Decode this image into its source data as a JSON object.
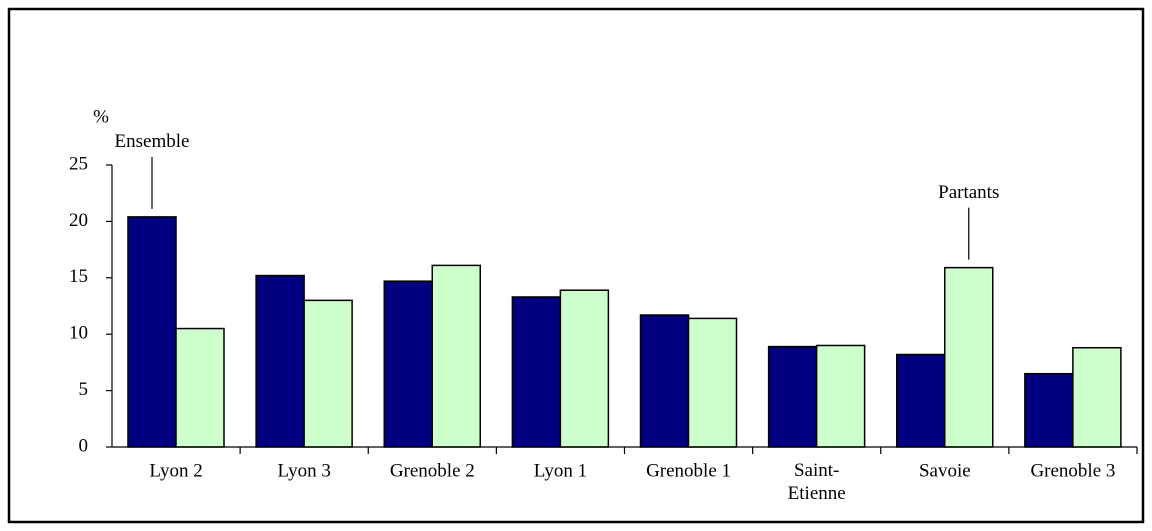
{
  "chart_data": {
    "type": "bar",
    "y_label": "%",
    "categories": [
      "Lyon 2",
      "Lyon 3",
      "Grenoble 2",
      "Lyon 1",
      "Grenoble 1",
      "Saint-\nEtienne",
      "Savoie",
      "Grenoble 3"
    ],
    "series": [
      {
        "name": "Ensemble",
        "color": "#000080",
        "values": [
          20.4,
          15.2,
          14.7,
          13.3,
          11.7,
          8.9,
          8.2,
          6.5
        ]
      },
      {
        "name": "Partants",
        "color": "#ccffcc",
        "values": [
          10.5,
          13.0,
          16.1,
          13.9,
          11.4,
          9.0,
          15.9,
          8.8
        ]
      }
    ],
    "ylim": [
      0,
      25
    ],
    "yticks": [
      0,
      5,
      10,
      15,
      20,
      25
    ]
  }
}
